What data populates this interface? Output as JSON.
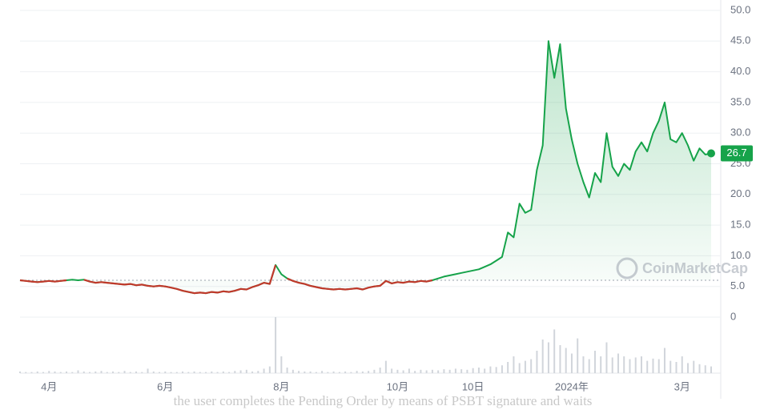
{
  "chart_data": {
    "type": "line",
    "categories": [
      null,
      null,
      null,
      null,
      null,
      "4月",
      null,
      null,
      null,
      null,
      null,
      null,
      null,
      null,
      null,
      null,
      null,
      null,
      null,
      null,
      null,
      null,
      null,
      null,
      null,
      "6月",
      null,
      null,
      null,
      null,
      null,
      null,
      null,
      null,
      null,
      null,
      null,
      null,
      null,
      null,
      null,
      null,
      null,
      null,
      null,
      "8月",
      null,
      null,
      null,
      null,
      null,
      null,
      null,
      null,
      null,
      null,
      null,
      null,
      null,
      null,
      null,
      null,
      null,
      null,
      null,
      "10月",
      null,
      null,
      null,
      null,
      null,
      null,
      null,
      null,
      null,
      null,
      null,
      null,
      "10日",
      null,
      null,
      null,
      null,
      null,
      null,
      null,
      null,
      null,
      null,
      null,
      null,
      null,
      null,
      null,
      null,
      "2024年",
      null,
      null,
      null,
      null,
      null,
      null,
      null,
      null,
      null,
      null,
      null,
      null,
      null,
      null,
      null,
      null,
      null,
      null,
      "3月",
      null,
      null,
      null,
      null,
      null
    ],
    "values": [
      6.0,
      5.9,
      5.8,
      5.7,
      5.8,
      5.9,
      5.8,
      5.9,
      6.0,
      6.1,
      6.0,
      6.1,
      5.8,
      5.6,
      5.7,
      5.6,
      5.5,
      5.4,
      5.3,
      5.4,
      5.2,
      5.3,
      5.1,
      5.0,
      5.1,
      5.0,
      4.8,
      4.6,
      4.3,
      4.1,
      3.9,
      4.0,
      3.9,
      4.1,
      4.0,
      4.2,
      4.1,
      4.3,
      4.6,
      4.5,
      4.9,
      5.2,
      5.6,
      5.4,
      8.5,
      7.0,
      6.3,
      5.9,
      5.6,
      5.4,
      5.1,
      4.9,
      4.7,
      4.6,
      4.5,
      4.6,
      4.5,
      4.6,
      4.7,
      4.5,
      4.8,
      5.0,
      5.1,
      5.9,
      5.5,
      5.7,
      5.6,
      5.8,
      5.7,
      5.9,
      5.8,
      6.0,
      6.3,
      6.6,
      6.8,
      7.0,
      7.2,
      7.4,
      7.6,
      7.8,
      8.2,
      8.6,
      9.2,
      9.8,
      13.8,
      13.0,
      18.5,
      17.0,
      17.5,
      24.0,
      28,
      45,
      39,
      44.5,
      34,
      29,
      25,
      22,
      19.5,
      23.5,
      22,
      30,
      24.5,
      23,
      25,
      24,
      27,
      28.5,
      27,
      30,
      32,
      35,
      29,
      28.5,
      30,
      28,
      25.5,
      27.5,
      26.5,
      26.7
    ],
    "value_labels": [
      null,
      null,
      null,
      null,
      null,
      null,
      null,
      null,
      null,
      null,
      null,
      null,
      null,
      null,
      null,
      null,
      null,
      null,
      null,
      null,
      null,
      null,
      null,
      null,
      null,
      null,
      null,
      null,
      null,
      null,
      null,
      null,
      null,
      null,
      null,
      null,
      null,
      null,
      null,
      null,
      null,
      null,
      null,
      null,
      null,
      null,
      null,
      null,
      null,
      null,
      null,
      null,
      null,
      null,
      null,
      null,
      null,
      null,
      null,
      null,
      null,
      null,
      null,
      null,
      null,
      null,
      null,
      null,
      null,
      null,
      null,
      null,
      null,
      null,
      null,
      null,
      null,
      null,
      null,
      null,
      null,
      null,
      null,
      null,
      null,
      null,
      null,
      null,
      null,
      null,
      null,
      null,
      null,
      null,
      null,
      null,
      null,
      null,
      null,
      null,
      null,
      null,
      null,
      null,
      null,
      null,
      null,
      null,
      null,
      null,
      null,
      null,
      null,
      null,
      null,
      null,
      null,
      null,
      null,
      "26.7"
    ],
    "volume": [
      3,
      2,
      2,
      3,
      2,
      4,
      3,
      2,
      3,
      2,
      5,
      3,
      2,
      3,
      4,
      2,
      3,
      2,
      4,
      2,
      3,
      2,
      8,
      3,
      2,
      3,
      2,
      2,
      3,
      2,
      3,
      2,
      2,
      3,
      2,
      3,
      2,
      4,
      5,
      6,
      3,
      4,
      8,
      12,
      100,
      30,
      10,
      6,
      4,
      3,
      3,
      2,
      4,
      2,
      3,
      2,
      3,
      2,
      4,
      3,
      4,
      6,
      10,
      22,
      8,
      6,
      5,
      8,
      4,
      6,
      5,
      6,
      5,
      7,
      6,
      8,
      7,
      6,
      9,
      10,
      8,
      12,
      11,
      14,
      20,
      30,
      18,
      22,
      25,
      40,
      60,
      55,
      78,
      50,
      45,
      35,
      62,
      30,
      25,
      40,
      30,
      55,
      28,
      35,
      30,
      25,
      28,
      30,
      22,
      26,
      25,
      45,
      22,
      20,
      30,
      18,
      22,
      16,
      14,
      12
    ],
    "color": "#16a34a",
    "down_color": "#c0392b",
    "ylim": [
      0,
      50
    ],
    "yticks": [
      0,
      {
        "value": 5,
        "label": "5.0"
      },
      {
        "value": 10,
        "label": "10.0"
      },
      {
        "value": 15,
        "label": "15.0"
      },
      {
        "value": 20,
        "label": "20.0"
      },
      {
        "value": 25,
        "label": "25.0"
      },
      {
        "value": 30,
        "label": "30.0"
      },
      {
        "value": 35,
        "label": "35.0"
      },
      {
        "value": 40,
        "label": "40.0"
      },
      {
        "value": 45,
        "label": "45.0"
      },
      {
        "value": 50,
        "label": "50.0"
      }
    ],
    "grid": true,
    "watermark": "CoinMarketCap",
    "caption": "the user completes the Pending Order by means of PSBT signature and waits"
  }
}
